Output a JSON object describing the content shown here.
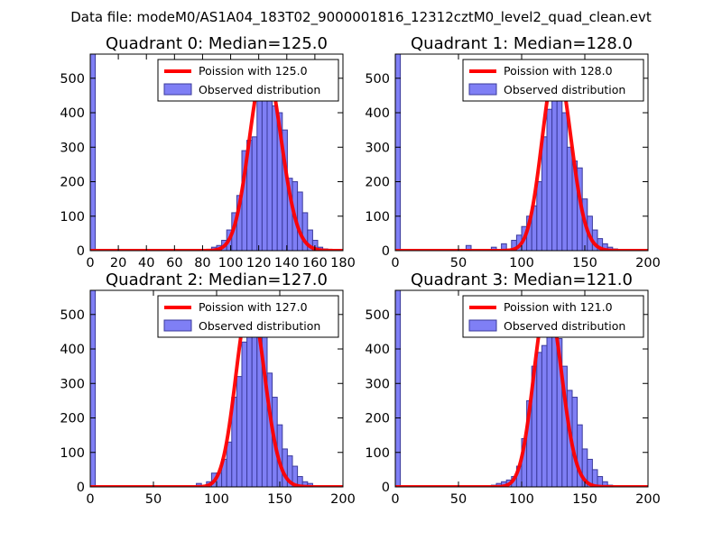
{
  "figure": {
    "suptitle": "Data file: modeM0/AS1A04_183T02_9000001816_12312cztM0_level2_quad_clean.evt"
  },
  "colors": {
    "bar_fill": "#7f7ff5",
    "bar_stroke": "#3b3b9c",
    "line": "#ff0000"
  },
  "chart_data": [
    {
      "type": "bar",
      "title": "Quadrant 0: Median=125.0",
      "xlim": [
        0,
        180
      ],
      "ylim": [
        0,
        570
      ],
      "xticks": [
        "0",
        "20",
        "40",
        "60",
        "80",
        "100",
        "120",
        "140",
        "160",
        "180"
      ],
      "yticks": [
        "0",
        "100",
        "200",
        "300",
        "400",
        "500"
      ],
      "legend": {
        "line_label": "Poission with 125.0",
        "bar_label": "Observed distribution",
        "position": "top-right"
      },
      "bin_width": 3.6,
      "bins_start": [
        0,
        86.4,
        90,
        93.6,
        97.2,
        100.8,
        104.4,
        108,
        111.6,
        115.2,
        118.8,
        122.4,
        126,
        129.6,
        133.2,
        136.8,
        140.4,
        144,
        147.6,
        151.2,
        154.8,
        158.4,
        162,
        165.6
      ],
      "counts": [
        570,
        10,
        15,
        30,
        60,
        110,
        160,
        290,
        320,
        330,
        450,
        530,
        500,
        420,
        400,
        350,
        210,
        200,
        170,
        110,
        60,
        30,
        10,
        5
      ],
      "poisson_mean": 125.0
    },
    {
      "type": "bar",
      "title": "Quadrant 1: Median=128.0",
      "xlim": [
        0,
        200
      ],
      "ylim": [
        0,
        570
      ],
      "xticks": [
        "0",
        "50",
        "100",
        "150",
        "200"
      ],
      "yticks": [
        "0",
        "100",
        "200",
        "300",
        "400",
        "500"
      ],
      "legend": {
        "line_label": "Poission with 128.0",
        "bar_label": "Observed distribution",
        "position": "top-right"
      },
      "bin_width": 4,
      "bins_start": [
        0,
        56,
        76,
        84,
        92,
        96,
        100,
        104,
        108,
        112,
        116,
        120,
        124,
        128,
        132,
        136,
        140,
        144,
        148,
        152,
        156,
        160,
        164,
        168,
        172
      ],
      "counts": [
        570,
        15,
        10,
        20,
        30,
        45,
        70,
        100,
        130,
        200,
        330,
        410,
        450,
        480,
        400,
        300,
        260,
        240,
        150,
        100,
        60,
        35,
        20,
        10,
        5
      ],
      "poisson_mean": 128.0
    },
    {
      "type": "bar",
      "title": "Quadrant 2: Median=127.0",
      "xlim": [
        0,
        200
      ],
      "ylim": [
        0,
        570
      ],
      "xticks": [
        "0",
        "50",
        "100",
        "150",
        "200"
      ],
      "yticks": [
        "0",
        "100",
        "200",
        "300",
        "400",
        "500"
      ],
      "legend": {
        "line_label": "Poission with 127.0",
        "bar_label": "Observed distribution",
        "position": "top-right"
      },
      "bin_width": 4,
      "bins_start": [
        0,
        84,
        92,
        96,
        100,
        104,
        108,
        112,
        116,
        120,
        124,
        128,
        132,
        136,
        140,
        144,
        148,
        152,
        156,
        160,
        164,
        168,
        172
      ],
      "counts": [
        570,
        10,
        15,
        40,
        40,
        80,
        130,
        260,
        320,
        420,
        520,
        500,
        470,
        450,
        330,
        260,
        180,
        110,
        90,
        60,
        30,
        15,
        10
      ],
      "poisson_mean": 127.0
    },
    {
      "type": "bar",
      "title": "Quadrant 3: Median=121.0",
      "xlim": [
        0,
        200
      ],
      "ylim": [
        0,
        570
      ],
      "xticks": [
        "0",
        "50",
        "100",
        "150",
        "200"
      ],
      "yticks": [
        "0",
        "100",
        "200",
        "300",
        "400",
        "500"
      ],
      "legend": {
        "line_label": "Poission with 121.0",
        "bar_label": "Observed distribution",
        "position": "top-right"
      },
      "bin_width": 4,
      "bins_start": [
        0,
        76,
        80,
        84,
        88,
        92,
        96,
        100,
        104,
        108,
        112,
        116,
        120,
        124,
        128,
        132,
        136,
        140,
        144,
        148,
        152,
        156,
        160,
        164,
        168
      ],
      "counts": [
        570,
        5,
        10,
        15,
        20,
        30,
        60,
        140,
        250,
        350,
        390,
        410,
        460,
        460,
        430,
        350,
        280,
        260,
        180,
        110,
        80,
        50,
        30,
        15,
        5
      ],
      "poisson_mean": 121.0
    }
  ]
}
